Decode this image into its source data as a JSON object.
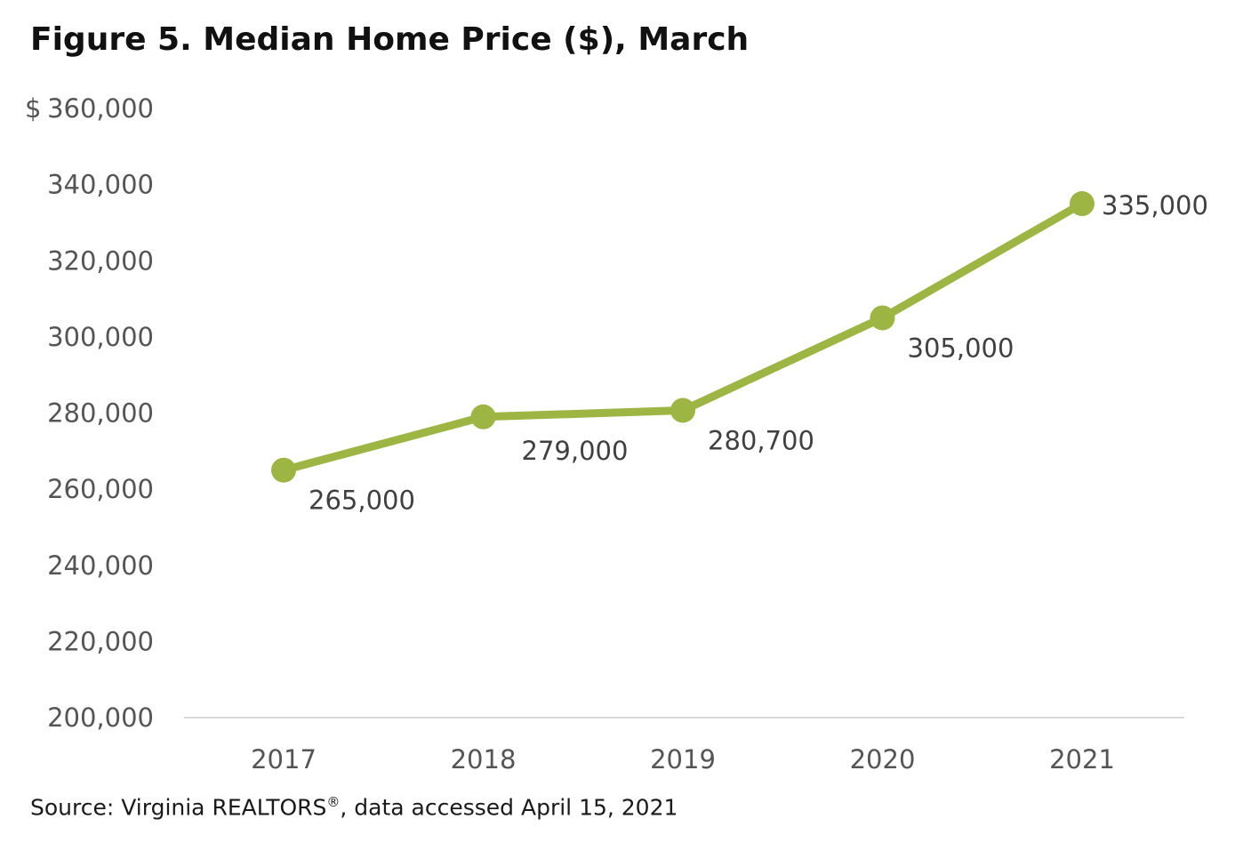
{
  "title": "Figure 5. Median Home Price ($), March",
  "source": {
    "text": "Source: Virginia REALTORS",
    "registered_mark": "®",
    "text_after": ", data accessed April 15, 2021"
  },
  "colors": {
    "series": "#9db543",
    "axis": "#d9d9d9",
    "tick_text": "#555555",
    "label_text": "#404040"
  },
  "chart_data": {
    "type": "line",
    "title": "Figure 5. Median Home Price ($), March",
    "categories": [
      "2017",
      "2018",
      "2019",
      "2020",
      "2021"
    ],
    "series": [
      {
        "values": [
          265000,
          279000,
          280700,
          305000,
          335000
        ]
      }
    ],
    "data_labels": [
      "265,000",
      "279,000",
      "280,700",
      "305,000",
      "335,000"
    ],
    "data_label_positions": [
      "below-right",
      "below",
      "below-right",
      "below-right",
      "right"
    ],
    "y_ticks": [
      200000,
      220000,
      240000,
      260000,
      280000,
      300000,
      320000,
      340000,
      360000
    ],
    "y_tick_labels": [
      "200,000",
      "220,000",
      "240,000",
      "260,000",
      "280,000",
      "300,000",
      "320,000",
      "340,000",
      "360,000"
    ],
    "y_currency_symbol": "$",
    "ylim": [
      200000,
      360000
    ],
    "grid": false,
    "legend": "none"
  }
}
